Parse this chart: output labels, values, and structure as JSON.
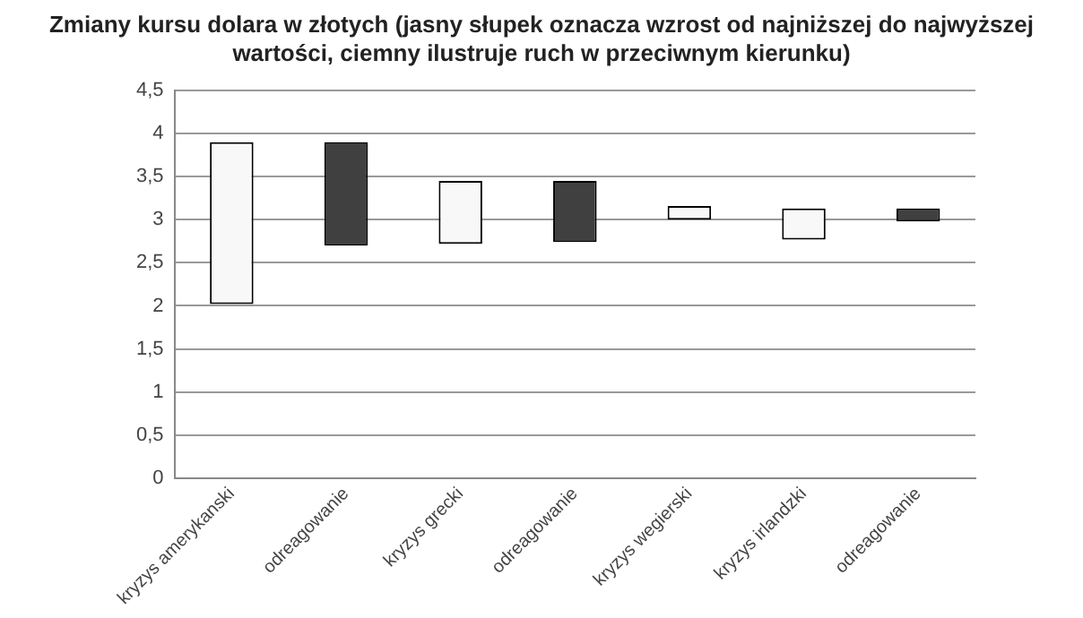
{
  "chart_data": {
    "type": "bar",
    "title": "Zmiany kursu dolara w złotych (jasny słupek oznacza wzrost od najniższej do najwyższej wartości, ciemny ilustruje ruch w przeciwnym kierunku)",
    "categories": [
      "kryzys amerykanski",
      "odreagowanie",
      "kryzys grecki",
      "odreagowanie",
      "kryzys wegierski",
      "kryzys irlandzki",
      "odreagowanie"
    ],
    "values": [
      1.88,
      1.2,
      0.73,
      0.71,
      0.16,
      0.36,
      0.15
    ],
    "base": [
      2.02,
      2.7,
      2.72,
      2.74,
      3.0,
      2.77,
      2.98
    ],
    "colors": [
      "#f8f8f8",
      "#404040",
      "#f8f8f8",
      "#404040",
      "#f8f8f8",
      "#f8f8f8",
      "#404040"
    ],
    "ylim": [
      0,
      4.5
    ],
    "yticks": [
      0,
      {
        "value": 0.5,
        "label": "0,5"
      },
      1,
      {
        "value": 1.5,
        "label": "1,5"
      },
      2,
      {
        "value": 2.5,
        "label": "2,5"
      },
      3,
      {
        "value": 3.5,
        "label": "3,5"
      },
      4,
      {
        "value": 4.5,
        "label": "4,5"
      }
    ],
    "grid": "y",
    "legend": false
  }
}
